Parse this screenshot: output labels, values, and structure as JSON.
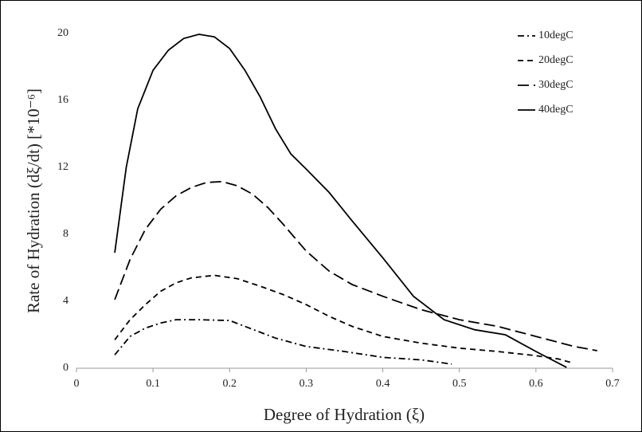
{
  "chart_data": {
    "type": "line",
    "x_label": "Degree of Hydration (ξ)",
    "y_label": "Rate of Hydration (dξ/dt) [*10⁻⁶]",
    "xlim": [
      0,
      0.7
    ],
    "xticks": [
      0,
      0.1,
      0.2,
      0.3,
      0.4,
      0.5,
      0.6,
      0.7
    ],
    "ylim": [
      0,
      20
    ],
    "yticks": [
      0,
      4,
      8,
      12,
      16,
      20
    ],
    "grid": false,
    "legend": "upper right",
    "series": [
      {
        "name": "10degC",
        "color": "#000000",
        "dash": "dashdot",
        "x": [
          0.05,
          0.07,
          0.09,
          0.11,
          0.13,
          0.16,
          0.2,
          0.22,
          0.26,
          0.3,
          0.35,
          0.4,
          0.45,
          0.49
        ],
        "values": [
          0.8,
          1.9,
          2.4,
          2.7,
          2.9,
          2.9,
          2.85,
          2.5,
          1.8,
          1.3,
          1.0,
          0.65,
          0.5,
          0.25
        ]
      },
      {
        "name": "20degC",
        "color": "#000000",
        "dash": "short",
        "x": [
          0.05,
          0.07,
          0.09,
          0.11,
          0.13,
          0.15,
          0.18,
          0.21,
          0.24,
          0.27,
          0.3,
          0.33,
          0.36,
          0.4,
          0.45,
          0.5,
          0.55,
          0.6,
          0.63,
          0.645
        ],
        "values": [
          1.7,
          2.9,
          3.8,
          4.6,
          5.1,
          5.4,
          5.55,
          5.35,
          4.9,
          4.4,
          3.8,
          3.1,
          2.5,
          1.9,
          1.5,
          1.2,
          1.0,
          0.75,
          0.55,
          0.35
        ]
      },
      {
        "name": "30degC",
        "color": "#000000",
        "dash": "long",
        "x": [
          0.05,
          0.07,
          0.09,
          0.11,
          0.13,
          0.15,
          0.17,
          0.19,
          0.21,
          0.23,
          0.25,
          0.27,
          0.3,
          0.33,
          0.36,
          0.4,
          0.45,
          0.5,
          0.55,
          0.6,
          0.65,
          0.68
        ],
        "values": [
          4.1,
          6.5,
          8.3,
          9.5,
          10.3,
          10.8,
          11.1,
          11.15,
          10.9,
          10.4,
          9.6,
          8.6,
          7.0,
          5.8,
          5.0,
          4.3,
          3.5,
          2.9,
          2.5,
          1.9,
          1.3,
          1.05
        ]
      },
      {
        "name": "40degC",
        "color": "#000000",
        "dash": "solid",
        "x": [
          0.05,
          0.065,
          0.08,
          0.1,
          0.12,
          0.14,
          0.16,
          0.18,
          0.2,
          0.22,
          0.24,
          0.26,
          0.28,
          0.3,
          0.33,
          0.36,
          0.4,
          0.44,
          0.48,
          0.52,
          0.56,
          0.6,
          0.64
        ],
        "values": [
          6.9,
          12,
          15.5,
          17.8,
          19.0,
          19.7,
          19.95,
          19.8,
          19.1,
          17.8,
          16.2,
          14.3,
          12.8,
          11.9,
          10.5,
          8.8,
          6.6,
          4.3,
          2.9,
          2.3,
          2.0,
          1.0,
          0.05
        ]
      }
    ]
  }
}
